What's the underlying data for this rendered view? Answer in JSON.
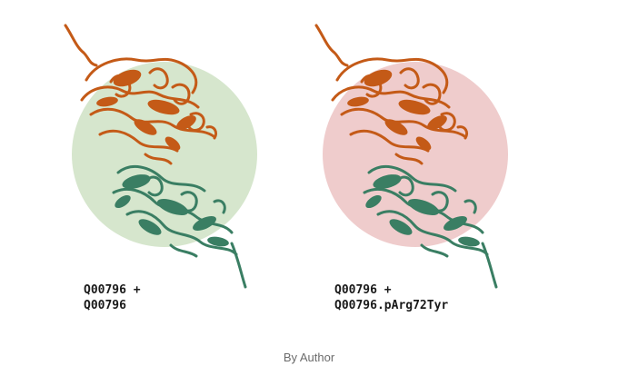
{
  "panels": [
    {
      "label_line1": "Q00796 +",
      "label_line2": "Q00796",
      "circle_color": "#d6e6cd",
      "top_chain_color": "#c45a17",
      "bottom_chain_color": "#3a7e63"
    },
    {
      "label_line1": "Q00796 +",
      "label_line2": "Q00796.pArg72Tyr",
      "circle_color": "#efcccc",
      "top_chain_color": "#c45a17",
      "bottom_chain_color": "#3a7e63"
    }
  ],
  "credit": "By Author"
}
